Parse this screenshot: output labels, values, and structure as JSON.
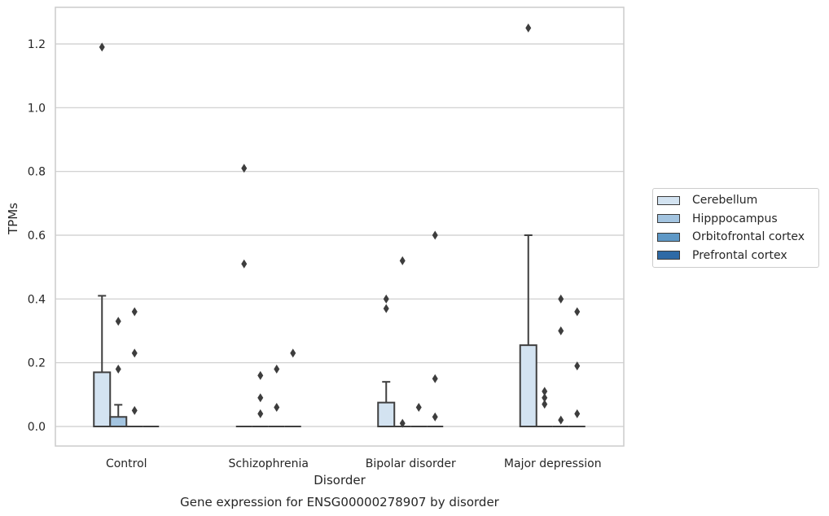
{
  "chart_data": {
    "type": "box",
    "title": "Gene expression for ENSG00000278907 by disorder",
    "xlabel": "Disorder",
    "ylabel": "TPMs",
    "categories": [
      "Control",
      "Schizophrenia",
      "Bipolar disorder",
      "Major depression"
    ],
    "ylim": [
      -0.06,
      1.32
    ],
    "yticks": [
      "0.0",
      "0.2",
      "0.4",
      "0.6",
      "0.8",
      "1.0",
      "1.2"
    ],
    "grid": "horizontal",
    "legend_position": "right",
    "series": [
      {
        "name": "Cerebellum",
        "color": "#d3e3f1",
        "boxes": [
          {
            "q1": 0,
            "median": 0,
            "q3": 0.17,
            "whisker_low": 0,
            "whisker_high": 0.41,
            "outliers": [
              1.19
            ]
          },
          {
            "q1": 0,
            "median": 0,
            "q3": 0,
            "whisker_low": 0,
            "whisker_high": 0,
            "outliers": [
              0.81,
              0.51
            ]
          },
          {
            "q1": 0,
            "median": 0,
            "q3": 0.075,
            "whisker_low": 0,
            "whisker_high": 0.14,
            "outliers": [
              0.4,
              0.37
            ]
          },
          {
            "q1": 0,
            "median": 0,
            "q3": 0.255,
            "whisker_low": 0,
            "whisker_high": 0.6,
            "outliers": [
              1.25
            ]
          }
        ]
      },
      {
        "name": "Hipppocampus",
        "color": "#a3c4e0",
        "boxes": [
          {
            "q1": 0,
            "median": 0,
            "q3": 0.03,
            "whisker_low": 0,
            "whisker_high": 0.068,
            "outliers": [
              0.33,
              0.18
            ]
          },
          {
            "q1": 0,
            "median": 0,
            "q3": 0,
            "whisker_low": 0,
            "whisker_high": 0,
            "outliers": [
              0.16,
              0.09,
              0.04
            ]
          },
          {
            "q1": 0,
            "median": 0,
            "q3": 0,
            "whisker_low": 0,
            "whisker_high": 0,
            "outliers": [
              0.52,
              0.01
            ]
          },
          {
            "q1": 0,
            "median": 0,
            "q3": 0,
            "whisker_low": 0,
            "whisker_high": 0,
            "outliers": [
              0.11,
              0.09,
              0.07
            ]
          }
        ]
      },
      {
        "name": "Orbitofrontal cortex",
        "color": "#5e98c6",
        "boxes": [
          {
            "q1": 0,
            "median": 0,
            "q3": 0,
            "whisker_low": 0,
            "whisker_high": 0,
            "outliers": [
              0.36,
              0.23,
              0.05
            ]
          },
          {
            "q1": 0,
            "median": 0,
            "q3": 0,
            "whisker_low": 0,
            "whisker_high": 0,
            "outliers": [
              0.18,
              0.06
            ]
          },
          {
            "q1": 0,
            "median": 0,
            "q3": 0,
            "whisker_low": 0,
            "whisker_high": 0,
            "outliers": [
              0.06
            ]
          },
          {
            "q1": 0,
            "median": 0,
            "q3": 0,
            "whisker_low": 0,
            "whisker_high": 0,
            "outliers": [
              0.4,
              0.3,
              0.02
            ]
          }
        ]
      },
      {
        "name": "Prefrontal cortex",
        "color": "#2e6aa6",
        "boxes": [
          {
            "q1": 0,
            "median": 0,
            "q3": 0,
            "whisker_low": 0,
            "whisker_high": 0,
            "outliers": []
          },
          {
            "q1": 0,
            "median": 0,
            "q3": 0,
            "whisker_low": 0,
            "whisker_high": 0,
            "outliers": [
              0.23
            ]
          },
          {
            "q1": 0,
            "median": 0,
            "q3": 0,
            "whisker_low": 0,
            "whisker_high": 0,
            "outliers": [
              0.6,
              0.15,
              0.03
            ]
          },
          {
            "q1": 0,
            "median": 0,
            "q3": 0,
            "whisker_low": 0,
            "whisker_high": 0,
            "outliers": [
              0.36,
              0.19,
              0.04
            ]
          }
        ]
      }
    ]
  }
}
